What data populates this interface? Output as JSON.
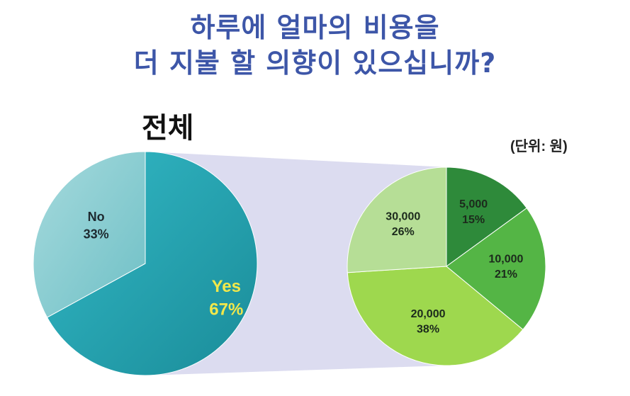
{
  "title": {
    "line1": "하루에 얼마의 비용을",
    "line2": "더 지불 할 의향이 있으십니까?"
  },
  "subtitle": "전체",
  "unit_note": "(단위: 원)",
  "colors": {
    "title": "#3d56a8",
    "yes": "#2aaab9",
    "no": "#8fd0d4",
    "connector": "#dcdcf0",
    "slice_5000": "#2e8a3a",
    "slice_10000": "#54b545",
    "slice_20000": "#9ed84e",
    "slice_30000": "#b6de96",
    "yes_label": "#f2e84a"
  },
  "chart_data": [
    {
      "type": "pie",
      "title": "전체",
      "slices": [
        {
          "label": "Yes",
          "value": 67,
          "display": "67%"
        },
        {
          "label": "No",
          "value": 33,
          "display": "33%"
        }
      ]
    },
    {
      "type": "pie",
      "unit": "원",
      "slices": [
        {
          "label": "5,000",
          "value": 15,
          "display": "15%"
        },
        {
          "label": "10,000",
          "value": 21,
          "display": "21%"
        },
        {
          "label": "20,000",
          "value": 38,
          "display": "38%"
        },
        {
          "label": "30,000",
          "value": 26,
          "display": "26%"
        }
      ]
    }
  ]
}
